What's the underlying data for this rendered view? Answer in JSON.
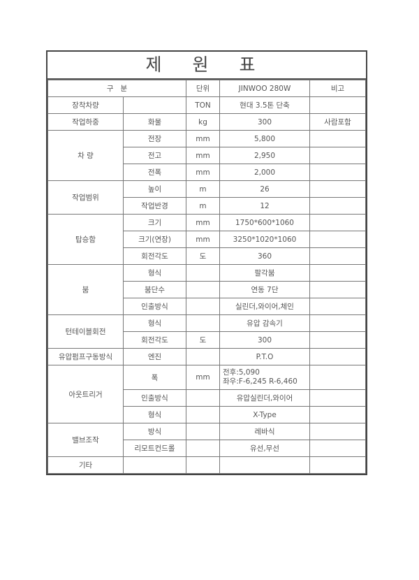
{
  "title": "제 원 표",
  "header": {
    "category": "구   분",
    "unit": "단위",
    "model": "JINWOO 280W",
    "remarks": "비고"
  },
  "groups": [
    {
      "name": "장착차량",
      "rows": [
        {
          "item": "",
          "unit": "TON",
          "value": "현대 3.5톤 단축",
          "remark": ""
        }
      ]
    },
    {
      "name": "작업하중",
      "rows": [
        {
          "item": "화물",
          "unit": "kg",
          "value": "300",
          "remark": "사람포함"
        }
      ]
    },
    {
      "name": "차 량",
      "rows": [
        {
          "item": "전장",
          "unit": "mm",
          "value": "5,800",
          "remark": ""
        },
        {
          "item": "전고",
          "unit": "mm",
          "value": "2,950",
          "remark": ""
        },
        {
          "item": "전폭",
          "unit": "mm",
          "value": "2,000",
          "remark": ""
        }
      ]
    },
    {
      "name": "작업범위",
      "rows": [
        {
          "item": "높이",
          "unit": "m",
          "value": "26",
          "remark": ""
        },
        {
          "item": "작업반경",
          "unit": "m",
          "value": "12",
          "remark": ""
        }
      ]
    },
    {
      "name": "탑승함",
      "rows": [
        {
          "item": "크기",
          "unit": "mm",
          "value": "1750*600*1060",
          "remark": ""
        },
        {
          "item": "크기(연장)",
          "unit": "mm",
          "value": "3250*1020*1060",
          "remark": ""
        },
        {
          "item": "회전각도",
          "unit": "도",
          "value": "360",
          "remark": ""
        }
      ]
    },
    {
      "name": "붐",
      "rows": [
        {
          "item": "형식",
          "unit": "",
          "value": "팔각붐",
          "remark": ""
        },
        {
          "item": "붐단수",
          "unit": "",
          "value": "연동 7단",
          "remark": ""
        },
        {
          "item": "인출방식",
          "unit": "",
          "value": "실린더,와이어,체인",
          "remark": ""
        }
      ]
    },
    {
      "name": "턴테이블회전",
      "rows": [
        {
          "item": "형식",
          "unit": "",
          "value": "유압 감속기",
          "remark": ""
        },
        {
          "item": "회전각도",
          "unit": "도",
          "value": "300",
          "remark": ""
        }
      ]
    },
    {
      "name": "유압펌프구동방식",
      "rows": [
        {
          "item": "엔진",
          "unit": "",
          "value": "P.T.O",
          "remark": ""
        }
      ]
    },
    {
      "name": "아웃트리거",
      "rows": [
        {
          "item": "폭",
          "unit": "mm",
          "value": "전후:5,090\n좌우:F-6,245 R-6,460",
          "remark": "",
          "multi": true
        },
        {
          "item": "인출방식",
          "unit": "",
          "value": "유압실린더,와이어",
          "remark": ""
        },
        {
          "item": "형식",
          "unit": "",
          "value": "X-Type",
          "remark": ""
        }
      ]
    },
    {
      "name": "밸브조작",
      "rows": [
        {
          "item": "방식",
          "unit": "",
          "value": "레바식",
          "remark": ""
        },
        {
          "item": "리모트컨드롤",
          "unit": "",
          "value": "유선,무선",
          "remark": ""
        }
      ]
    },
    {
      "name": "기타",
      "rows": [
        {
          "item": "",
          "unit": "",
          "value": "",
          "remark": ""
        }
      ]
    }
  ]
}
